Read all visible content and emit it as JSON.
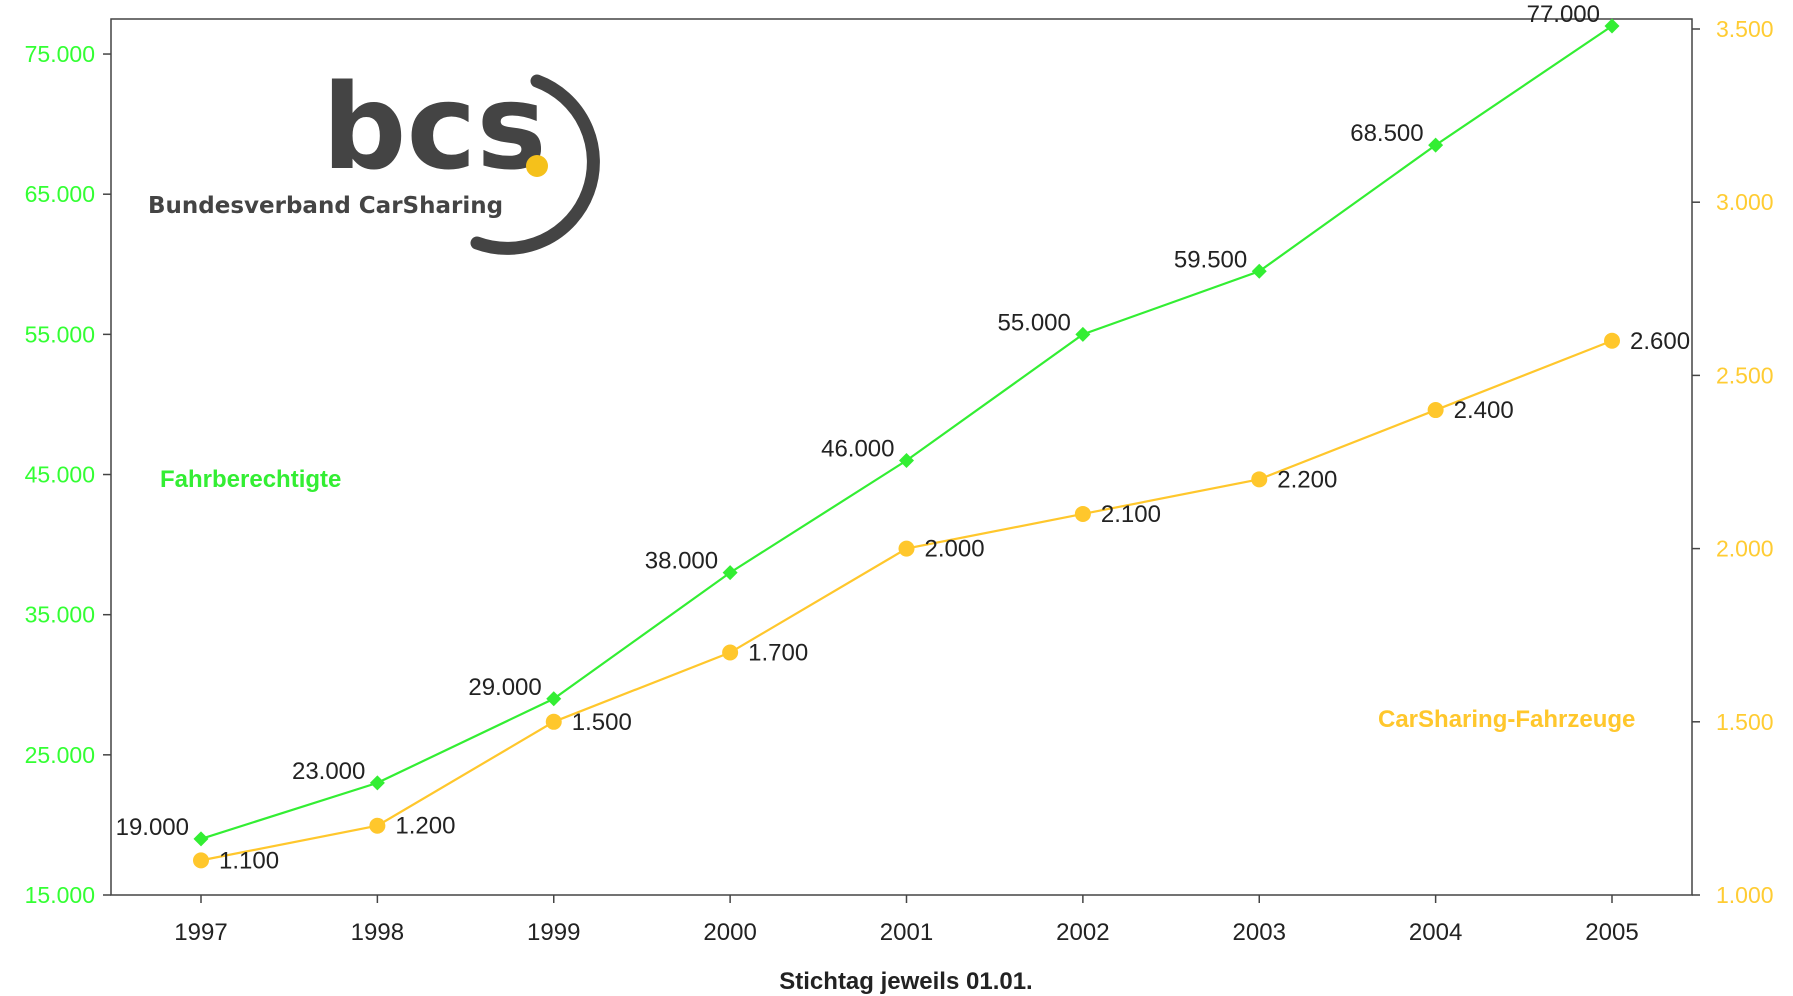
{
  "chart_data": {
    "type": "line",
    "categories": [
      "1997",
      "1998",
      "1999",
      "2000",
      "2001",
      "2002",
      "2003",
      "2004",
      "2005"
    ],
    "series": [
      {
        "name": "Fahrberechtigte",
        "axis": "left",
        "color": "#33ee33",
        "marker": "diamond",
        "values": [
          19000,
          23000,
          29000,
          38000,
          46000,
          55000,
          59500,
          68500,
          77000
        ],
        "labels": [
          "19.000",
          "23.000",
          "29.000",
          "38.000",
          "46.000",
          "55.000",
          "59.500",
          "68.500",
          "77.000"
        ]
      },
      {
        "name": "CarSharing-Fahrzeuge",
        "axis": "right",
        "color": "#ffc72c",
        "marker": "circle",
        "values": [
          1100,
          1200,
          1500,
          1700,
          2000,
          2100,
          2200,
          2400,
          2600
        ],
        "labels": [
          "1.100",
          "1.200",
          "1.500",
          "1.700",
          "2.000",
          "2.100",
          "2.200",
          "2.400",
          "2.600"
        ]
      }
    ],
    "xlabel": "Stichtag jeweils 01.01.",
    "y_left": {
      "range": [
        15000,
        77500
      ],
      "ticks": [
        15000,
        25000,
        35000,
        45000,
        55000,
        65000,
        75000
      ],
      "tick_labels": [
        "15.000",
        "25.000",
        "35.000",
        "45.000",
        "55.000",
        "65.000",
        "75.000"
      ],
      "color": "#33ff33"
    },
    "y_right": {
      "range": [
        1000,
        3500
      ],
      "ticks": [
        1000,
        1500,
        2000,
        2500,
        3000,
        3500
      ],
      "tick_labels": [
        "1.000",
        "1.500",
        "2.000",
        "2.500",
        "3.000",
        "3.500"
      ],
      "color": "#ffcc33"
    },
    "grid": false,
    "legend": "inline labels (left-center for Fahrberechtigte, right-lower for CarSharing-Fahrzeuge)"
  },
  "logo": {
    "text": "bcs",
    "subtitle": "Bundesverband CarSharing",
    "text_color": "#444444",
    "dot_color": "#f5c11b"
  }
}
